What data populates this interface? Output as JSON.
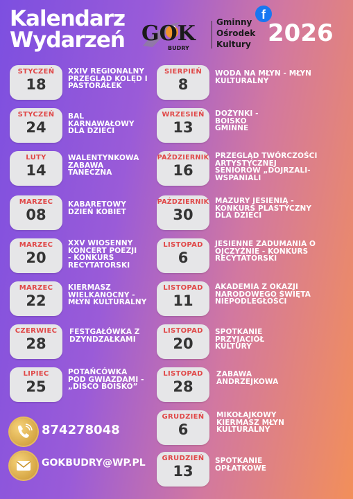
{
  "header": {
    "title_line1": "Kalendarz",
    "title_line2": "Wydarzeń",
    "logo_text": "GOK",
    "logo_sub": "BUDRY",
    "org_line1": "Gminny",
    "org_line2": "Ośrodek",
    "org_line3": "Kultury",
    "facebook_icon": "f",
    "year": "2026"
  },
  "events_left": [
    {
      "month": "STYCZEŃ",
      "day": "18",
      "desc": "XXIV REGIONALNY PRZEGLĄD KOLĘD I PASTORAŁEK"
    },
    {
      "month": "STYCZEŃ",
      "day": "24",
      "desc": "BAL KARNAWAŁOWY DLA DZIECI"
    },
    {
      "month": "LUTY",
      "day": "14",
      "desc": "WALENTYNKOWA ZABAWA TANECZNA"
    },
    {
      "month": "MARZEC",
      "day": "08",
      "desc": "KABARETOWY DZIEŃ KOBIET"
    },
    {
      "month": "MARZEC",
      "day": "20",
      "desc": "XXV WIOSENNY KONCERT POEZJI - KONKURS RECYTATORSKI"
    },
    {
      "month": "MARZEC",
      "day": "22",
      "desc": "KIERMASZ WIELKANOCNY - MŁYN KULTURALNY"
    },
    {
      "month": "CZERWIEC",
      "day": "28",
      "desc": "FESTGAŁÓWKA Z DZYNDZAŁKAMI"
    },
    {
      "month": "LIPIEC",
      "day": "25",
      "desc": "POTAŃCÓWKA POD GWIAZDAMI - „DISCO BOISKO”"
    }
  ],
  "events_right": [
    {
      "month": "SIERPIEŃ",
      "day": "8",
      "desc": "WODA NA MŁYN - MŁYN KULTURALNY"
    },
    {
      "month": "WRZESIEŃ",
      "day": "13",
      "desc": "DOŻYNKI - BOISKO GMINNE"
    },
    {
      "month": "PAŹDZIERNIK",
      "day": "16",
      "desc": "PRZEGLĄD TWÓRCZOŚCI ARTYSTYCZNEJ SENIORÓW „DOJRZALI-WSPANIALI"
    },
    {
      "month": "PAŹDZIERNIK",
      "day": "30",
      "desc": "MAZURY JESIENIĄ - KONKURS PLASTYCZNY DLA DZIECI"
    },
    {
      "month": "LISTOPAD",
      "day": "6",
      "desc": "JESIENNE ZADUMANIA O OJCZYŹNIE - KONKURS RECYTATORSKI"
    },
    {
      "month": "LISTOPAD",
      "day": "11",
      "desc": "AKADEMIA Z OKAZJI NARODOWEGO ŚWIĘTA NIEPODLEGŁOŚCI"
    },
    {
      "month": "LISTOPAD",
      "day": "20",
      "desc": "SPOTKANIE PRZYJACIÓŁ KULTURY"
    },
    {
      "month": "LISTOPAD",
      "day": "28",
      "desc": "ZABAWA ANDRZEJKOWA"
    },
    {
      "month": "GRUDZIEŃ",
      "day": "6",
      "desc": "MIKOŁAJKOWY KIERMASZ MŁYN KULTURALNY"
    },
    {
      "month": "GRUDZIEŃ",
      "day": "13",
      "desc": "SPOTKANIE OPŁATKOWE"
    }
  ],
  "contact": {
    "phone": "874278048",
    "email": "GOKBUDRY@WP.PL",
    "phone_icon": "phone-icon",
    "email_icon": "mail-icon"
  },
  "colors": {
    "month_red": "#e04848",
    "card_bg": "#e6e6e8",
    "gold": "#d4a443",
    "fb_blue": "#1877f2"
  }
}
